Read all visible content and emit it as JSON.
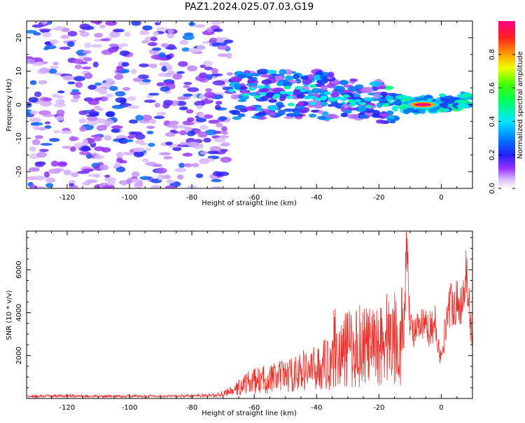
{
  "title": "PAZ1.2024.025.07.03.G19",
  "colors": {
    "snr_line": "#e8322d",
    "spectrogram_light": "#dcc3ff",
    "spectrogram_mid": "#a778f5",
    "spectrogram_deep": "#7a1fe6"
  },
  "chart_data": [
    {
      "type": "heatmap",
      "title": "PAZ1.2024.025.07.03.G19",
      "xlabel": "Height of straight line (km)",
      "ylabel": "Frequency (Hz)",
      "xlim": [
        -133,
        10
      ],
      "ylim": [
        -25,
        25
      ],
      "x_ticks": [
        -120,
        -100,
        -80,
        -60,
        -40,
        -20,
        0
      ],
      "y_ticks": [
        -20,
        -10,
        0,
        10,
        20
      ],
      "colorbar": {
        "label": "Normalized spectral amplitude",
        "range": [
          0,
          1
        ],
        "ticks": [
          0.0,
          0.2,
          0.4,
          0.6,
          0.8
        ],
        "colormap": "gist_rainbow_r"
      },
      "features": [
        {
          "region": "noise",
          "x_range": [
            -133,
            -68
          ],
          "frequency_range": [
            -25,
            25
          ],
          "amplitude": [
            0.05,
            0.3
          ]
        },
        {
          "region": "signal_band",
          "x_range": [
            -68,
            10
          ],
          "center_frequency": [
            [
              -65,
              3
            ],
            [
              -50,
              3
            ],
            [
              -40,
              3
            ],
            [
              -30,
              2
            ],
            [
              -20,
              1
            ],
            [
              -10,
              0
            ],
            [
              0,
              0
            ],
            [
              10,
              2
            ]
          ],
          "peak_x": -6,
          "peak_amplitude": 1.0
        }
      ]
    },
    {
      "type": "line",
      "xlabel": "Height of straight line (km)",
      "ylabel": "SNR (10 * v/v)",
      "xlim": [
        -133,
        10
      ],
      "ylim": [
        0,
        7800
      ],
      "x_ticks": [
        -120,
        -100,
        -80,
        -60,
        -40,
        -20,
        0
      ],
      "y_ticks": [
        2000,
        4000,
        6000
      ],
      "series": [
        {
          "x": [
            -133,
            -120,
            -110,
            -100,
            -90,
            -80,
            -72,
            -66,
            -63,
            -60,
            -56,
            -52,
            -48,
            -44,
            -40,
            -36,
            -34,
            -32,
            -30,
            -28,
            -26,
            -24,
            -22,
            -20,
            -18,
            -16,
            -14,
            -12,
            -11,
            -10,
            -8,
            -6,
            -4,
            -2,
            0,
            2,
            4,
            6,
            8,
            10
          ],
          "y": [
            100,
            120,
            100,
            110,
            100,
            120,
            150,
            400,
            700,
            800,
            900,
            1000,
            1100,
            1300,
            1400,
            1700,
            2500,
            2000,
            2400,
            2200,
            2600,
            2500,
            2300,
            2600,
            2800,
            2900,
            2800,
            3100,
            7500,
            3300,
            3100,
            3400,
            3200,
            3500,
            1700,
            4200,
            4600,
            4200,
            6000,
            2300
          ]
        }
      ]
    }
  ]
}
